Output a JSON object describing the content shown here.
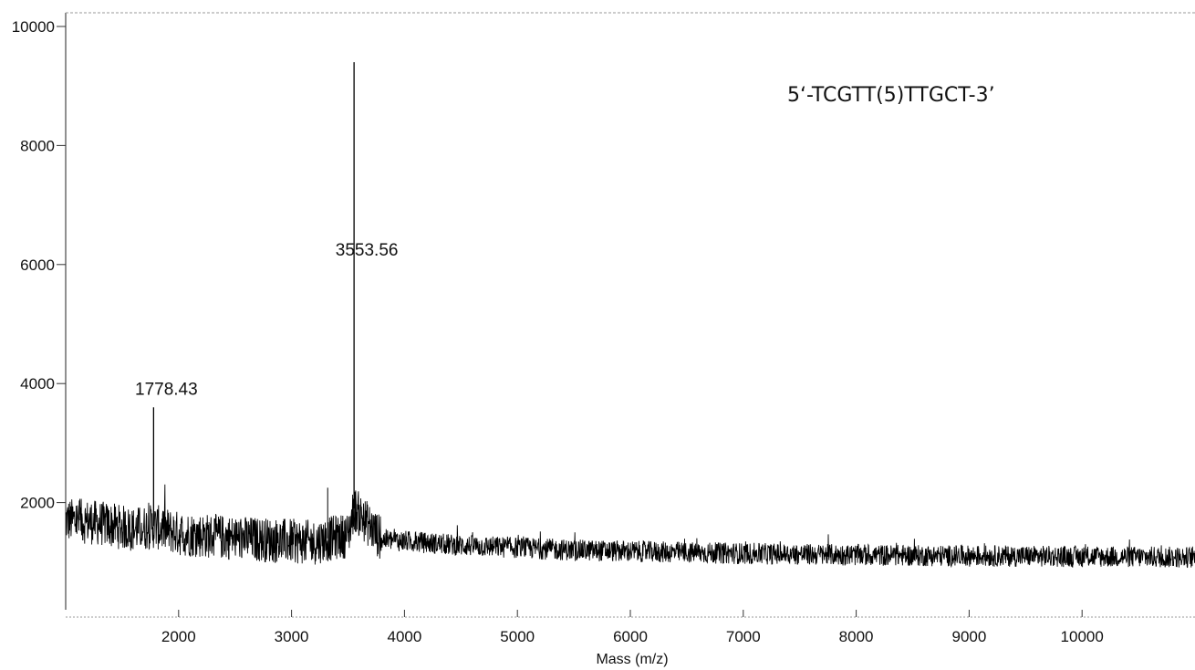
{
  "chart_data": {
    "type": "line",
    "title": "",
    "xlabel": "Mass (m/z)",
    "ylabel": "",
    "xlim": [
      1000,
      11000
    ],
    "ylim": [
      0,
      10000
    ],
    "x_ticks": [
      2000,
      3000,
      4000,
      5000,
      6000,
      7000,
      8000,
      9000,
      10000
    ],
    "x_tick_labels": [
      "2000",
      "3000",
      "4000",
      "5000",
      "6000",
      "7000",
      "8000",
      "9000",
      "10000"
    ],
    "y_ticks": [
      2000,
      4000,
      6000,
      8000,
      10000
    ],
    "y_tick_labels": [
      "2000",
      "4000",
      "6000",
      "8000",
      "10000"
    ],
    "grid": false,
    "annotation": "5‘-TCGTT(5)TTGCT-3’",
    "peaks": [
      {
        "label": "1778.43",
        "x": 1778.43,
        "y": 3600
      },
      {
        "label": "3553.56",
        "x": 3553.56,
        "y": 9400
      }
    ],
    "series": [
      {
        "x": [
          1000,
          1200,
          1400,
          1600,
          1778.43,
          2000,
          2400,
          2800,
          3200,
          3300,
          3500,
          3553.56,
          3800,
          4500,
          5500,
          6500,
          7500,
          8500,
          9500,
          11000
        ],
        "y": [
          1700,
          1680,
          1620,
          1550,
          1600,
          1480,
          1420,
          1370,
          1330,
          1380,
          1450,
          1900,
          1380,
          1280,
          1200,
          1160,
          1130,
          1110,
          1100,
          1080
        ]
      }
    ]
  }
}
